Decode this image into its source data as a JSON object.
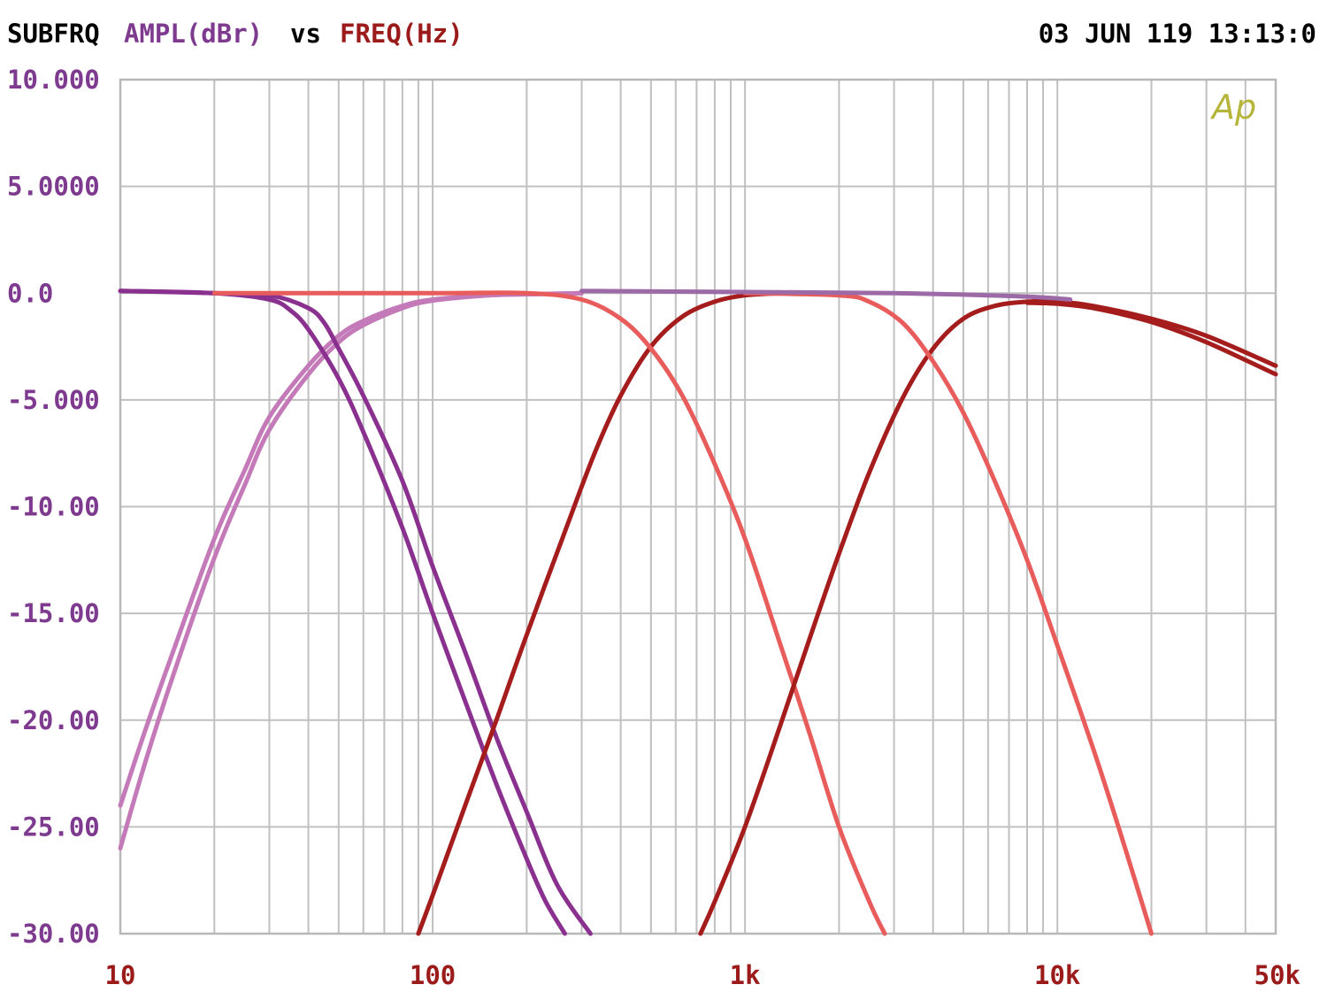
{
  "header": {
    "left_label": "SUBFRQ",
    "y_quantity": "AMPL(dBr)",
    "vs_label": "vs",
    "x_quantity": "FREQ(Hz)",
    "timestamp": "03 JUN 119 13:13:0",
    "logo": "Ap"
  },
  "colors": {
    "background": "#ffffff",
    "grid": "#c0c0c0",
    "frame": "#b8b8b8",
    "header_text": "#000000",
    "y_label_color": "#7d3a8f",
    "x_label_color": "#9b1b1b",
    "logo_color": "#b5b53c"
  },
  "chart_data": {
    "type": "line",
    "xscale": "log",
    "xlim": [
      10,
      50000
    ],
    "ylim": [
      -30,
      10
    ],
    "grid": true,
    "y_ticks": [
      {
        "value": 10,
        "label": "10.000"
      },
      {
        "value": 5,
        "label": "5.0000"
      },
      {
        "value": 0,
        "label": "0.0"
      },
      {
        "value": -5,
        "label": "-5.000"
      },
      {
        "value": -10,
        "label": "-10.00"
      },
      {
        "value": -15,
        "label": "-15.00"
      },
      {
        "value": -20,
        "label": "-20.00"
      },
      {
        "value": -25,
        "label": "-25.00"
      },
      {
        "value": -30,
        "label": "-30.00"
      }
    ],
    "x_ticks": [
      {
        "value": 10,
        "label": "10"
      },
      {
        "value": 100,
        "label": "100"
      },
      {
        "value": 1000,
        "label": "1k"
      },
      {
        "value": 10000,
        "label": "10k"
      },
      {
        "value": 50000,
        "label": "50k"
      }
    ],
    "series": [
      {
        "color": "#c47ab8",
        "x": [
          10,
          12,
          15,
          20,
          25,
          30,
          40,
          50,
          60,
          80,
          100,
          150,
          200,
          300
        ],
        "y": [
          -24,
          -20.5,
          -16.5,
          -11.5,
          -8.3,
          -5.8,
          -3.4,
          -2.0,
          -1.3,
          -0.6,
          -0.3,
          -0.1,
          -0.05,
          0
        ]
      },
      {
        "color": "#c47ab8",
        "x": [
          10,
          12,
          15,
          20,
          25,
          30,
          40,
          50,
          60,
          80,
          100,
          150,
          200,
          300
        ],
        "y": [
          -26,
          -22,
          -17.6,
          -12.4,
          -9.0,
          -6.4,
          -3.8,
          -2.3,
          -1.5,
          -0.7,
          -0.35,
          -0.1,
          -0.05,
          0
        ]
      },
      {
        "color": "#8a3190",
        "x": [
          10,
          20,
          30,
          35,
          40,
          50,
          60,
          80,
          100,
          130,
          160,
          200,
          230,
          265
        ],
        "y": [
          0.1,
          0,
          -0.3,
          -0.8,
          -1.7,
          -4.0,
          -6.5,
          -11,
          -15,
          -19.5,
          -23,
          -26.5,
          -28.5,
          -30
        ]
      },
      {
        "color": "#8a3190",
        "x": [
          10,
          20,
          30,
          40,
          45,
          50,
          60,
          80,
          100,
          130,
          160,
          200,
          250,
          320
        ],
        "y": [
          0.1,
          0,
          -0.1,
          -0.7,
          -1.4,
          -2.6,
          -4.8,
          -8.8,
          -12.8,
          -17.2,
          -20.8,
          -24.3,
          -27.7,
          -30
        ]
      },
      {
        "color": "#a51c1c",
        "x": [
          90,
          100,
          130,
          160,
          200,
          260,
          330,
          400,
          500,
          630,
          800,
          1000,
          1300
        ],
        "y": [
          -30,
          -28.2,
          -23.6,
          -20,
          -16,
          -11.5,
          -7.5,
          -4.8,
          -2.5,
          -1.1,
          -0.4,
          -0.1,
          0
        ]
      },
      {
        "color": "#e85c5c",
        "x": [
          20,
          100,
          200,
          300,
          400,
          500,
          630,
          800,
          1000,
          1300,
          1600,
          2000,
          2500,
          2800
        ],
        "y": [
          0,
          0,
          0,
          -0.3,
          -1.2,
          -2.6,
          -4.8,
          -8,
          -11.5,
          -16.5,
          -20.5,
          -25,
          -28.5,
          -30
        ]
      },
      {
        "color": "#a51c1c",
        "x": [
          720,
          800,
          1000,
          1300,
          1600,
          2000,
          2500,
          3200,
          4000,
          5000,
          6300,
          8000,
          10000,
          13000,
          20000,
          30000,
          50000
        ],
        "y": [
          -30,
          -28.5,
          -25,
          -20.2,
          -16.3,
          -12.2,
          -8.4,
          -4.9,
          -2.6,
          -1.2,
          -0.6,
          -0.4,
          -0.4,
          -0.6,
          -1.2,
          -2.0,
          -3.4
        ]
      },
      {
        "color": "#a51c1c",
        "x": [
          8000,
          10000,
          13000,
          20000,
          30000,
          50000
        ],
        "y": [
          -0.45,
          -0.5,
          -0.7,
          -1.35,
          -2.3,
          -3.8
        ]
      },
      {
        "color": "#e85c5c",
        "x": [
          1000,
          2000,
          2500,
          3200,
          4000,
          5000,
          6300,
          8000,
          10000,
          13000,
          16000,
          20000
        ],
        "y": [
          0,
          -0.1,
          -0.4,
          -1.4,
          -3.2,
          -5.6,
          -8.8,
          -12.5,
          -16.5,
          -21.3,
          -25.4,
          -30
        ]
      },
      {
        "color": "#9d6aa8",
        "x": [
          300,
          1000,
          3000,
          6000,
          9000,
          11000
        ],
        "y": [
          0.1,
          0.05,
          0,
          -0.1,
          -0.2,
          -0.3
        ]
      }
    ]
  }
}
